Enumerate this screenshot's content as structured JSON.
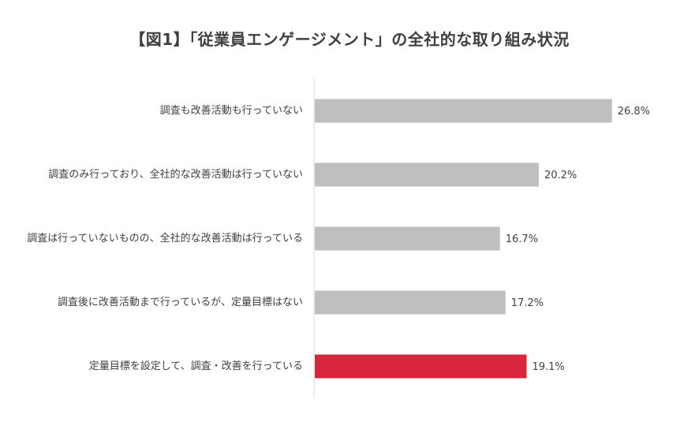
{
  "chart_data": {
    "type": "bar",
    "orientation": "horizontal",
    "title": "【図1】「従業員エンゲージメント」の全社的な取り組み状況",
    "xlabel": "",
    "ylabel": "",
    "categories": [
      "調査も改善活動も行っていない",
      "調査のみ行っており、全社的な改善活動は行っていない",
      "調査は行っていないものの、全社的な改善活動は行っている",
      "調査後に改善活動まで行っているが、定量目標はない",
      "定量目標を設定して、調査・改善を行っている"
    ],
    "values": [
      26.8,
      20.2,
      16.7,
      17.2,
      19.1
    ],
    "value_labels": [
      "26.8%",
      "20.2%",
      "16.7%",
      "17.2%",
      "19.1%"
    ],
    "unit": "%",
    "xlim": [
      0,
      35
    ],
    "grid": false,
    "legend": "none",
    "colors": {
      "default_bar": "#bfbfbf",
      "highlight_bar": "#d9263f",
      "axis": "#d9d9d9",
      "text": "#404040"
    },
    "highlight_index": 4
  }
}
